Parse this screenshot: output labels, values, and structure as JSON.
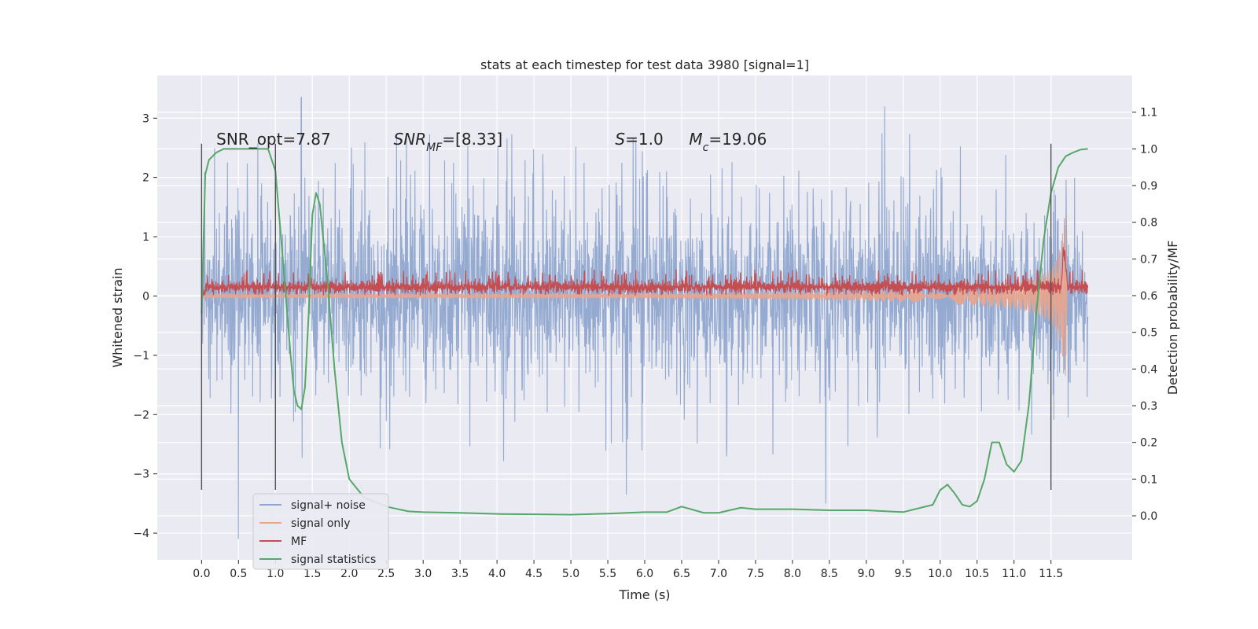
{
  "chart_data": {
    "type": "line",
    "title": "stats at each timestep for test data 3980 [signal=1]",
    "xlabel": "Time (s)",
    "ylabel": "Whitened strain",
    "y2label": "Detection probability/MF",
    "xlim": [
      -0.6,
      12.6
    ],
    "ylim": [
      -4.45,
      3.72
    ],
    "y2lim": [
      -0.12,
      1.2
    ],
    "x_ticks": [
      0.0,
      0.5,
      1.0,
      1.5,
      2.0,
      2.5,
      3.0,
      3.5,
      4.0,
      4.5,
      5.0,
      5.5,
      6.0,
      6.5,
      7.0,
      7.5,
      8.0,
      8.5,
      9.0,
      9.5,
      10.0,
      10.5,
      11.0,
      11.5
    ],
    "x_tick_labels": [
      "0.0",
      "0.5",
      "1.0",
      "1.5",
      "2.0",
      "2.5",
      "3.0",
      "3.5",
      "4.0",
      "4.5",
      "5.0",
      "5.5",
      "6.0",
      "6.5",
      "7.0",
      "7.5",
      "8.0",
      "8.5",
      "9.0",
      "9.5",
      "10.0",
      "10.5",
      "11.0",
      "11.5"
    ],
    "y_ticks": [
      3,
      2,
      1,
      0,
      -1,
      -2,
      -3,
      -4
    ],
    "y_tick_labels": [
      "3",
      "2",
      "1",
      "0",
      "−1",
      "−2",
      "−3",
      "−4"
    ],
    "y2_ticks": [
      1.1,
      1.0,
      0.9,
      0.8,
      0.7,
      0.6,
      0.5,
      0.4,
      0.3,
      0.2,
      0.1,
      0.0
    ],
    "y2_tick_labels": [
      "1.1",
      "1.0",
      "0.9",
      "0.8",
      "0.7",
      "0.6",
      "0.5",
      "0.4",
      "0.3",
      "0.2",
      "0.1",
      "0.0"
    ],
    "grid": true,
    "legend_position": "lower-left",
    "legend": [
      {
        "label": "signal+ noise",
        "color": "#8fa6cf"
      },
      {
        "label": "signal only",
        "color": "#e8a48c"
      },
      {
        "label": "MF",
        "color": "#c44e52"
      },
      {
        "label": "signal statistics",
        "color": "#55a868"
      }
    ],
    "annotations": [
      {
        "text": "SNR_opt=7.87",
        "x": 0.2,
        "y": 2.55
      },
      {
        "text": "SNR_MF=[8.33]",
        "x": 2.6,
        "y": 2.55
      },
      {
        "text": "S=1.0",
        "x": 5.6,
        "y": 2.55
      },
      {
        "text": "M_c=19.06",
        "x": 6.6,
        "y": 2.55
      }
    ],
    "vlines": [
      {
        "x": 0.0,
        "ymin": -3.27,
        "ymax": 2.57
      },
      {
        "x": 1.0,
        "ymin": -3.27,
        "ymax": 2.57
      },
      {
        "x": 11.5,
        "ymin": -3.27,
        "ymax": 2.57
      }
    ],
    "series": [
      {
        "name": "signal+ noise",
        "axis": "left",
        "color": "#8fa6cf",
        "x_range": [
          0.0,
          12.0
        ],
        "typical_range": [
          -1.7,
          1.9
        ],
        "extremes": [
          [
            0.5,
            -4.1
          ],
          [
            1.35,
            3.35
          ],
          [
            5.75,
            -3.35
          ],
          [
            8.45,
            -3.5
          ],
          [
            9.25,
            3.2
          ]
        ]
      },
      {
        "name": "signal only",
        "axis": "left",
        "color": "#e8a48c",
        "x": [
          0.0,
          6.0,
          8.0,
          9.0,
          10.0,
          10.5,
          11.0,
          11.3,
          11.5,
          11.6,
          11.65,
          11.7,
          11.72
        ],
        "amplitude": [
          0.03,
          0.04,
          0.06,
          0.08,
          0.12,
          0.16,
          0.22,
          0.3,
          0.45,
          0.7,
          1.0,
          1.4,
          0.0
        ]
      },
      {
        "name": "MF",
        "axis": "left",
        "color": "#c44e52",
        "x_range": [
          0.0,
          12.0
        ],
        "typical_range": [
          0.0,
          0.3
        ],
        "peak": [
          11.68,
          1.0
        ]
      },
      {
        "name": "signal statistics",
        "axis": "right",
        "color": "#55a868",
        "x": [
          0.0,
          0.05,
          0.1,
          0.2,
          0.3,
          0.5,
          0.7,
          0.9,
          1.0,
          1.1,
          1.2,
          1.25,
          1.3,
          1.35,
          1.4,
          1.45,
          1.5,
          1.55,
          1.6,
          1.7,
          1.8,
          1.9,
          2.0,
          2.2,
          2.5,
          2.8,
          3.0,
          3.5,
          4.0,
          4.5,
          5.0,
          5.5,
          6.0,
          6.3,
          6.5,
          6.8,
          7.0,
          7.3,
          7.5,
          8.0,
          8.5,
          9.0,
          9.5,
          9.9,
          10.0,
          10.1,
          10.2,
          10.3,
          10.4,
          10.5,
          10.6,
          10.7,
          10.8,
          10.9,
          11.0,
          11.1,
          11.2,
          11.3,
          11.4,
          11.5,
          11.6,
          11.7,
          11.8,
          11.9,
          12.0
        ],
        "y": [
          0.55,
          0.93,
          0.97,
          0.99,
          1.0,
          1.0,
          1.0,
          1.0,
          0.94,
          0.7,
          0.45,
          0.34,
          0.3,
          0.29,
          0.35,
          0.55,
          0.82,
          0.88,
          0.85,
          0.65,
          0.4,
          0.2,
          0.1,
          0.05,
          0.025,
          0.012,
          0.01,
          0.008,
          0.005,
          0.004,
          0.003,
          0.006,
          0.01,
          0.01,
          0.025,
          0.008,
          0.008,
          0.022,
          0.018,
          0.018,
          0.015,
          0.015,
          0.01,
          0.03,
          0.07,
          0.085,
          0.06,
          0.03,
          0.025,
          0.04,
          0.1,
          0.2,
          0.2,
          0.14,
          0.12,
          0.15,
          0.3,
          0.55,
          0.75,
          0.88,
          0.95,
          0.98,
          0.99,
          0.998,
          1.0
        ]
      }
    ]
  }
}
